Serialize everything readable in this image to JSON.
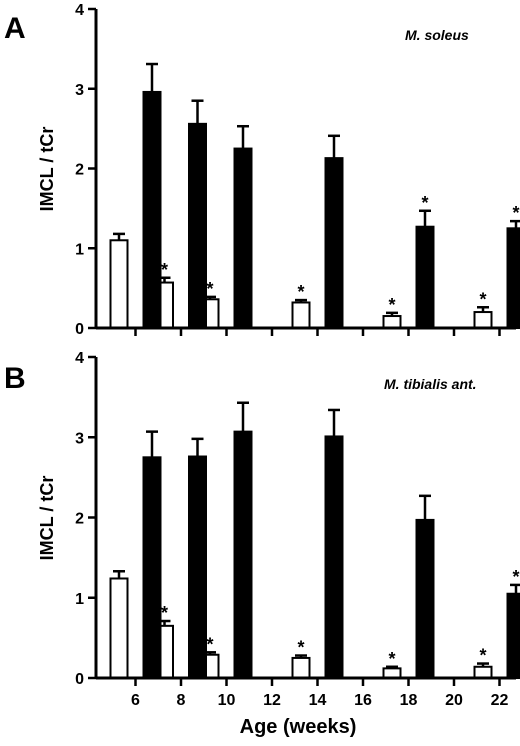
{
  "chart_data": [
    {
      "type": "bar",
      "panel_label": "A",
      "annotation": "M. soleus",
      "ylabel": "IMCL / tCr",
      "xlabel": "",
      "ylim": [
        0,
        4
      ],
      "yticks": [
        "0",
        "1",
        "2",
        "3",
        "4"
      ],
      "grid": false,
      "series": [
        {
          "fill": "#ffffff",
          "points": [
            {
              "x": 6,
              "value": 1.1,
              "error": 0.08,
              "significant": false
            },
            {
              "x": 8,
              "value": 0.57,
              "error": 0.06,
              "significant": true
            },
            {
              "x": 10,
              "value": 0.36,
              "error": 0.03,
              "significant": true
            },
            {
              "x": 14,
              "value": 0.32,
              "error": 0.03,
              "significant": true
            },
            {
              "x": 18,
              "value": 0.15,
              "error": 0.04,
              "significant": true
            },
            {
              "x": 22,
              "value": 0.2,
              "error": 0.06,
              "significant": true
            }
          ]
        },
        {
          "fill": "#000000",
          "points": [
            {
              "x": 6,
              "value": 2.96,
              "error": 0.35,
              "significant": false
            },
            {
              "x": 8,
              "value": 2.56,
              "error": 0.29,
              "significant": false
            },
            {
              "x": 10,
              "value": 2.25,
              "error": 0.28,
              "significant": false
            },
            {
              "x": 14,
              "value": 2.13,
              "error": 0.28,
              "significant": false
            },
            {
              "x": 18,
              "value": 1.27,
              "error": 0.2,
              "significant": true
            },
            {
              "x": 22,
              "value": 1.25,
              "error": 0.09,
              "significant": true
            }
          ]
        }
      ]
    },
    {
      "type": "bar",
      "panel_label": "B",
      "annotation": "M. tibialis ant.",
      "ylabel": "IMCL / tCr",
      "xlabel": "Age (weeks)",
      "ylim": [
        0,
        4
      ],
      "yticks": [
        "0",
        "1",
        "2",
        "3",
        "4"
      ],
      "xticks": [
        "6",
        "8",
        "10",
        "12",
        "14",
        "16",
        "18",
        "20",
        "22"
      ],
      "grid": false,
      "series": [
        {
          "fill": "#ffffff",
          "points": [
            {
              "x": 6,
              "value": 1.24,
              "error": 0.09,
              "significant": false
            },
            {
              "x": 8,
              "value": 0.65,
              "error": 0.06,
              "significant": true
            },
            {
              "x": 10,
              "value": 0.29,
              "error": 0.03,
              "significant": true
            },
            {
              "x": 14,
              "value": 0.25,
              "error": 0.03,
              "significant": true
            },
            {
              "x": 18,
              "value": 0.12,
              "error": 0.02,
              "significant": true
            },
            {
              "x": 22,
              "value": 0.14,
              "error": 0.04,
              "significant": true
            }
          ]
        },
        {
          "fill": "#000000",
          "points": [
            {
              "x": 6,
              "value": 2.75,
              "error": 0.32,
              "significant": false
            },
            {
              "x": 8,
              "value": 2.76,
              "error": 0.22,
              "significant": false
            },
            {
              "x": 10,
              "value": 3.07,
              "error": 0.36,
              "significant": false
            },
            {
              "x": 14,
              "value": 3.01,
              "error": 0.33,
              "significant": false
            },
            {
              "x": 18,
              "value": 1.97,
              "error": 0.3,
              "significant": false
            },
            {
              "x": 22,
              "value": 1.05,
              "error": 0.11,
              "significant": true
            }
          ]
        }
      ]
    }
  ]
}
